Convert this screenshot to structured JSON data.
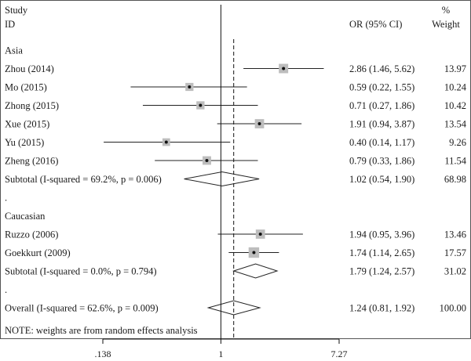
{
  "chart_data": {
    "type": "forest",
    "header": {
      "study_label_1": "Study",
      "study_label_2": "ID",
      "or_label": "OR (95% CI)",
      "weight_label_1": "%",
      "weight_label_2": "Weight"
    },
    "x_scale": "log",
    "xlim": [
      0.138,
      7.27
    ],
    "x_ticks": [
      {
        "value": 0.138,
        "label": ".138"
      },
      {
        "value": 1,
        "label": "1"
      },
      {
        "value": 7.27,
        "label": "7.27"
      }
    ],
    "null_line": 1,
    "overall_line": 1.24,
    "rows": [
      {
        "kind": "group",
        "label": "Asia"
      },
      {
        "kind": "study",
        "label": "Zhou (2014)",
        "or": 2.86,
        "lo": 1.46,
        "hi": 5.62,
        "ci_text": "2.86 (1.46, 5.62)",
        "weight": "13.97"
      },
      {
        "kind": "study",
        "label": "Mo (2015)",
        "or": 0.59,
        "lo": 0.22,
        "hi": 1.55,
        "ci_text": "0.59 (0.22, 1.55)",
        "weight": "10.24"
      },
      {
        "kind": "study",
        "label": "Zhong (2015)",
        "or": 0.71,
        "lo": 0.27,
        "hi": 1.86,
        "ci_text": "0.71 (0.27, 1.86)",
        "weight": "10.42"
      },
      {
        "kind": "study",
        "label": "Xue (2015)",
        "or": 1.91,
        "lo": 0.94,
        "hi": 3.87,
        "ci_text": "1.91 (0.94, 3.87)",
        "weight": "13.54"
      },
      {
        "kind": "study",
        "label": "Yu (2015)",
        "or": 0.4,
        "lo": 0.14,
        "hi": 1.17,
        "ci_text": "0.40 (0.14, 1.17)",
        "weight": "9.26"
      },
      {
        "kind": "study",
        "label": "Zheng (2016)",
        "or": 0.79,
        "lo": 0.33,
        "hi": 1.86,
        "ci_text": "0.79 (0.33, 1.86)",
        "weight": "11.54"
      },
      {
        "kind": "subtotal",
        "label": "Subtotal (I-squared = 69.2%, p = 0.006)",
        "or": 1.02,
        "lo": 0.54,
        "hi": 1.9,
        "ci_text": "1.02 (0.54, 1.90)",
        "weight": "68.98"
      },
      {
        "kind": "spacer",
        "label": "."
      },
      {
        "kind": "group",
        "label": "Caucasian"
      },
      {
        "kind": "study",
        "label": "Ruzzo (2006)",
        "or": 1.94,
        "lo": 0.95,
        "hi": 3.96,
        "ci_text": "1.94 (0.95, 3.96)",
        "weight": "13.46"
      },
      {
        "kind": "study",
        "label": "Goekkurt (2009)",
        "or": 1.74,
        "lo": 1.14,
        "hi": 2.65,
        "ci_text": "1.74 (1.14, 2.65)",
        "weight": "17.57"
      },
      {
        "kind": "subtotal",
        "label": "Subtotal (I-squared = 0.0%, p = 0.794)",
        "or": 1.79,
        "lo": 1.24,
        "hi": 2.57,
        "ci_text": "1.79 (1.24, 2.57)",
        "weight": "31.02"
      },
      {
        "kind": "spacer",
        "label": "."
      },
      {
        "kind": "overall",
        "label": "Overall (I-squared = 62.6%, p = 0.009)",
        "or": 1.24,
        "lo": 0.81,
        "hi": 1.92,
        "ci_text": "1.24 (0.81, 1.92)",
        "weight": "100.00"
      }
    ],
    "note": "NOTE: weights are from random effects analysis"
  }
}
